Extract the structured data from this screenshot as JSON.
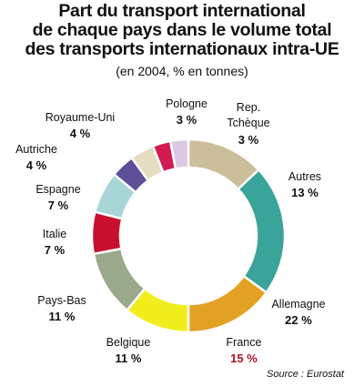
{
  "title_lines": [
    "Part du transport international",
    "de chaque pays dans le volume total",
    "des transports internationaux intra-UE"
  ],
  "subtitle": "(en 2004, % en tonnes)",
  "source": "Source : Eurostat",
  "chart_data": {
    "type": "pie",
    "donut": true,
    "title": "Part du transport international de chaque pays dans le volume total des transports internationaux intra-UE",
    "subtitle": "(en 2004, % en tonnes)",
    "slices": [
      {
        "name": "Autres",
        "value": 13,
        "label": "13 %",
        "color": "#cbbe9a"
      },
      {
        "name": "Allemagne",
        "value": 22,
        "label": "22 %",
        "color": "#3aa39a"
      },
      {
        "name": "France",
        "value": 15,
        "label": "15 %",
        "color": "#e3a124",
        "highlight": true
      },
      {
        "name": "Belgique",
        "value": 11,
        "label": "11 %",
        "color": "#f2ee1e"
      },
      {
        "name": "Pays-Bas",
        "value": 11,
        "label": "11 %",
        "color": "#9aa88c"
      },
      {
        "name": "Italie",
        "value": 7,
        "label": "7 %",
        "color": "#c8102e"
      },
      {
        "name": "Espagne",
        "value": 7,
        "label": "7 %",
        "color": "#a8d6d6"
      },
      {
        "name": "Autriche",
        "value": 4,
        "label": "4 %",
        "color": "#5e4f99"
      },
      {
        "name": "Royaume-Uni",
        "value": 4,
        "label": "4 %",
        "color": "#e6dcc0"
      },
      {
        "name": "Pologne",
        "value": 3,
        "label": "3 %",
        "color": "#d11a52"
      },
      {
        "name": "Rep. Tchèque",
        "value": 3,
        "label": "3 %",
        "color": "#dcc8e2"
      }
    ]
  }
}
